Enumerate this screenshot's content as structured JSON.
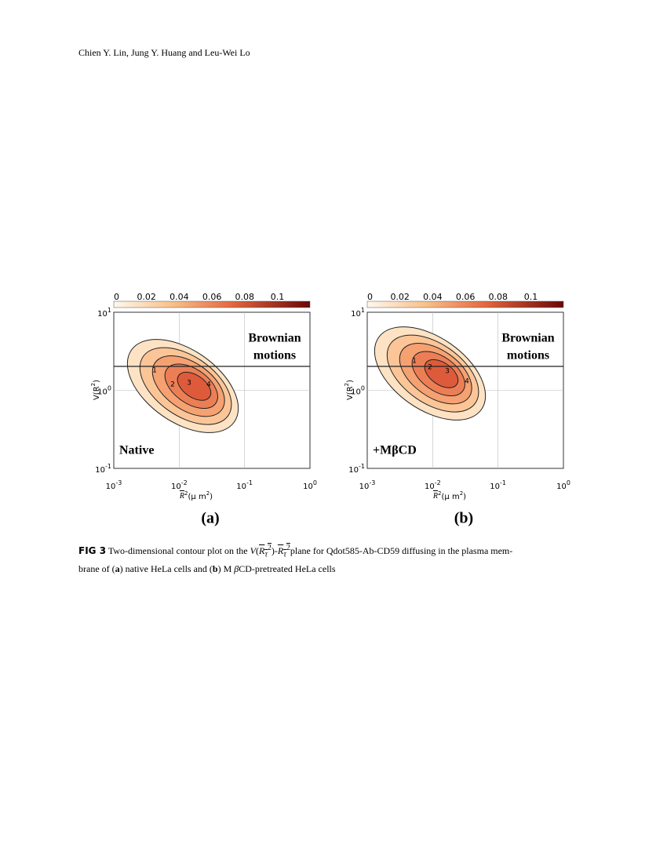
{
  "header": {
    "authors": "Chien Y. Lin, Jung Y. Huang and Leu-Wei Lo"
  },
  "figure": {
    "panels": [
      {
        "label": "(a)",
        "annotation": "Native",
        "region_label": [
          "Brownian",
          "motions"
        ],
        "contour_labels": [
          "1",
          "2",
          "3",
          "4"
        ]
      },
      {
        "label": "(b)",
        "annotation": "+MβCD",
        "region_label": [
          "Brownian",
          "motions"
        ],
        "contour_labels": [
          "1",
          "2",
          "3",
          "4"
        ]
      }
    ],
    "colorbar_ticks": [
      "0",
      "0.02",
      "0.04",
      "0.06",
      "0.08",
      "0.1"
    ],
    "x_ticks": [
      {
        "base": "10",
        "exp": "-3"
      },
      {
        "base": "10",
        "exp": "-2"
      },
      {
        "base": "10",
        "exp": "-1"
      },
      {
        "base": "10",
        "exp": "0"
      }
    ],
    "y_ticks": [
      {
        "base": "10",
        "exp": "1"
      },
      {
        "base": "10",
        "exp": "0"
      },
      {
        "base": "10",
        "exp": "-1"
      }
    ],
    "x_label": {
      "symbol": "R",
      "sup": "2",
      "unit": "(μ m",
      "unit_sup": "2",
      "close": ")"
    },
    "y_label": {
      "open": "V(R",
      "sup": "2",
      "close": ")"
    }
  },
  "caption": {
    "label": "FIG 3",
    "text1": " Two-dimensional contour plot on the ",
    "math": {
      "v": "V",
      "r": "R",
      "sub": "τ",
      "sup": "2",
      "dash": "-"
    },
    "text2": "plane for Qdot585-Ab-CD59 diffusing in the plasma mem-",
    "line2": [
      "brane of (",
      "a",
      ") native HeLa cells and (",
      "b",
      ") M ",
      "β",
      "CD-pretreated HeLa cells"
    ]
  }
}
